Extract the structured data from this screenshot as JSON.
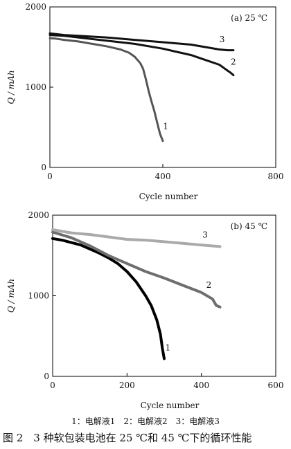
{
  "chart_data": [
    {
      "type": "line",
      "annotation": "(a) 25 ℃",
      "xlabel": "Cycle number",
      "ylabel": "Q / mAh",
      "xlim": [
        0,
        800
      ],
      "ylim": [
        0,
        2000
      ],
      "xticks": [
        "0",
        "400",
        "800"
      ],
      "yticks": [
        "0",
        "1000",
        "2000"
      ],
      "series": [
        {
          "name": "1",
          "color": "#555555",
          "x": [
            0,
            20,
            50,
            100,
            150,
            200,
            250,
            280,
            300,
            320,
            330,
            340,
            350,
            360,
            370,
            380,
            390,
            400
          ],
          "y": [
            1610,
            1605,
            1590,
            1570,
            1540,
            1510,
            1470,
            1430,
            1380,
            1300,
            1230,
            1100,
            950,
            820,
            700,
            560,
            420,
            330
          ]
        },
        {
          "name": "2",
          "color": "#111111",
          "x": [
            0,
            50,
            100,
            200,
            300,
            400,
            450,
            500,
            550,
            600,
            620,
            640,
            650
          ],
          "y": [
            1650,
            1640,
            1620,
            1580,
            1540,
            1480,
            1440,
            1400,
            1340,
            1280,
            1230,
            1180,
            1150
          ]
        },
        {
          "name": "3",
          "color": "#111111",
          "x": [
            0,
            50,
            100,
            200,
            300,
            400,
            500,
            550,
            600,
            630,
            650
          ],
          "y": [
            1670,
            1650,
            1640,
            1620,
            1590,
            1560,
            1530,
            1500,
            1470,
            1460,
            1460
          ]
        }
      ],
      "label_points": [
        {
          "name": "1",
          "x": 410,
          "y": 480
        },
        {
          "name": "2",
          "x": 650,
          "y": 1280
        },
        {
          "name": "3",
          "x": 610,
          "y": 1560
        }
      ]
    },
    {
      "type": "line",
      "annotation": "(b) 45 ℃",
      "xlabel": "Cycle number",
      "ylabel": "Q / mAh",
      "xlim": [
        0,
        600
      ],
      "ylim": [
        0,
        2000
      ],
      "xticks": [
        "0",
        "200",
        "400",
        "600"
      ],
      "yticks": [
        "0",
        "1000",
        "2000"
      ],
      "series": [
        {
          "name": "1",
          "color": "#000000",
          "x": [
            0,
            25,
            50,
            75,
            100,
            125,
            150,
            175,
            200,
            225,
            250,
            265,
            280,
            290,
            295,
            300
          ],
          "y": [
            1710,
            1690,
            1660,
            1630,
            1580,
            1530,
            1470,
            1400,
            1300,
            1170,
            1000,
            880,
            700,
            520,
            350,
            220
          ]
        },
        {
          "name": "2",
          "color": "#6e6e6e",
          "x": [
            0,
            50,
            100,
            150,
            200,
            250,
            300,
            350,
            400,
            430,
            440,
            450
          ],
          "y": [
            1790,
            1720,
            1620,
            1500,
            1400,
            1300,
            1220,
            1130,
            1040,
            960,
            880,
            860
          ]
        },
        {
          "name": "3",
          "color": "#aaaaaa",
          "x": [
            0,
            50,
            100,
            150,
            200,
            250,
            300,
            350,
            400,
            450
          ],
          "y": [
            1820,
            1780,
            1760,
            1730,
            1700,
            1690,
            1670,
            1650,
            1630,
            1610
          ]
        }
      ],
      "label_points": [
        {
          "name": "1",
          "x": 310,
          "y": 320
        },
        {
          "name": "2",
          "x": 420,
          "y": 1100
        },
        {
          "name": "3",
          "x": 410,
          "y": 1720
        }
      ]
    }
  ],
  "legend_text": "1：电解液1　2：电解液2　3：电解液3",
  "figure_caption": "图 2　3 种软包装电池在 25 ℃和 45 ℃下的循环性能"
}
